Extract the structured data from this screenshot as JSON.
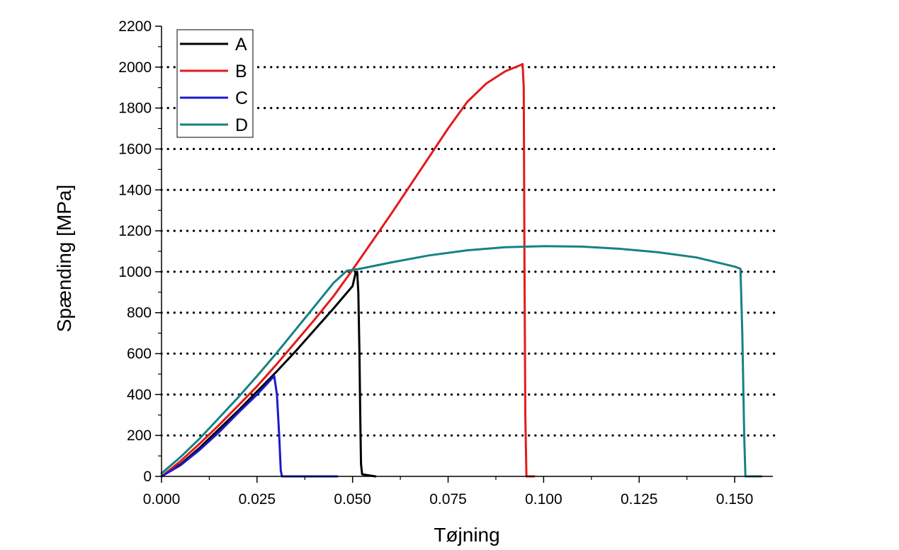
{
  "chart_data": {
    "type": "line",
    "title": "",
    "xlabel": "Tøjning",
    "ylabel": "Spænding [MPa]",
    "xlim": [
      0.0,
      0.16
    ],
    "ylim": [
      0,
      2200
    ],
    "x_ticks": [
      "0.000",
      "0.025",
      "0.050",
      "0.075",
      "0.100",
      "0.125",
      "0.150"
    ],
    "y_ticks": [
      "0",
      "200",
      "400",
      "600",
      "800",
      "1000",
      "1200",
      "1400",
      "1600",
      "1800",
      "2000",
      "2200"
    ],
    "grid": "horizontal dotted",
    "legend_position": "top-left",
    "series": [
      {
        "name": "A",
        "color": "#000000",
        "points": [
          [
            0.0,
            0
          ],
          [
            0.005,
            60
          ],
          [
            0.01,
            140
          ],
          [
            0.015,
            230
          ],
          [
            0.02,
            320
          ],
          [
            0.025,
            415
          ],
          [
            0.03,
            510
          ],
          [
            0.035,
            610
          ],
          [
            0.04,
            715
          ],
          [
            0.045,
            820
          ],
          [
            0.05,
            930
          ],
          [
            0.0508,
            995
          ],
          [
            0.0512,
            1000
          ],
          [
            0.0515,
            900
          ],
          [
            0.0518,
            600
          ],
          [
            0.052,
            300
          ],
          [
            0.0522,
            60
          ],
          [
            0.0525,
            10
          ],
          [
            0.056,
            0
          ]
        ]
      },
      {
        "name": "B",
        "color": "#e31a1c",
        "points": [
          [
            0.0,
            0
          ],
          [
            0.005,
            75
          ],
          [
            0.01,
            160
          ],
          [
            0.015,
            250
          ],
          [
            0.02,
            345
          ],
          [
            0.025,
            440
          ],
          [
            0.03,
            545
          ],
          [
            0.035,
            655
          ],
          [
            0.04,
            765
          ],
          [
            0.045,
            880
          ],
          [
            0.05,
            1010
          ],
          [
            0.055,
            1145
          ],
          [
            0.06,
            1280
          ],
          [
            0.065,
            1420
          ],
          [
            0.07,
            1560
          ],
          [
            0.075,
            1700
          ],
          [
            0.08,
            1830
          ],
          [
            0.085,
            1920
          ],
          [
            0.09,
            1980
          ],
          [
            0.094,
            2010
          ],
          [
            0.0945,
            2015
          ],
          [
            0.0948,
            1900
          ],
          [
            0.095,
            1000
          ],
          [
            0.0952,
            300
          ],
          [
            0.0955,
            0
          ],
          [
            0.0975,
            0
          ]
        ]
      },
      {
        "name": "C",
        "color": "#1a1acd",
        "points": [
          [
            0.0,
            0
          ],
          [
            0.005,
            55
          ],
          [
            0.01,
            130
          ],
          [
            0.015,
            215
          ],
          [
            0.02,
            310
          ],
          [
            0.025,
            400
          ],
          [
            0.028,
            460
          ],
          [
            0.0295,
            490
          ],
          [
            0.0302,
            400
          ],
          [
            0.0308,
            200
          ],
          [
            0.0312,
            30
          ],
          [
            0.0315,
            0
          ],
          [
            0.046,
            0
          ]
        ]
      },
      {
        "name": "D",
        "color": "#168282",
        "points": [
          [
            0.0,
            15
          ],
          [
            0.005,
            95
          ],
          [
            0.01,
            185
          ],
          [
            0.015,
            285
          ],
          [
            0.02,
            385
          ],
          [
            0.025,
            490
          ],
          [
            0.03,
            600
          ],
          [
            0.035,
            715
          ],
          [
            0.04,
            830
          ],
          [
            0.045,
            945
          ],
          [
            0.0485,
            1005
          ],
          [
            0.052,
            1015
          ],
          [
            0.06,
            1045
          ],
          [
            0.07,
            1080
          ],
          [
            0.08,
            1105
          ],
          [
            0.09,
            1120
          ],
          [
            0.1,
            1125
          ],
          [
            0.11,
            1123
          ],
          [
            0.12,
            1112
          ],
          [
            0.13,
            1095
          ],
          [
            0.14,
            1070
          ],
          [
            0.15,
            1025
          ],
          [
            0.1515,
            1015
          ],
          [
            0.152,
            700
          ],
          [
            0.1525,
            200
          ],
          [
            0.1528,
            0
          ],
          [
            0.157,
            0
          ]
        ]
      }
    ]
  }
}
